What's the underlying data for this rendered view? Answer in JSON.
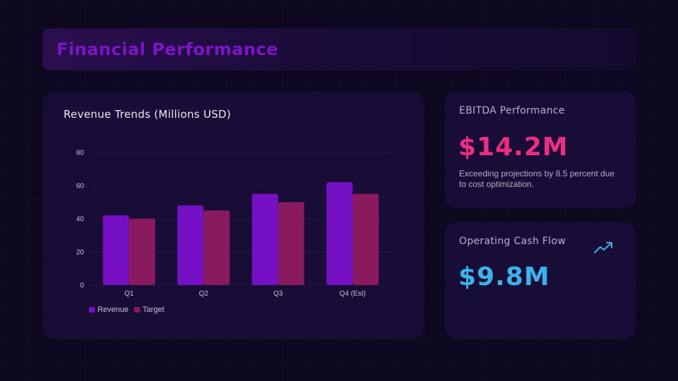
{
  "page": {
    "title": "Financial Performance"
  },
  "chart_data": {
    "type": "bar",
    "title": "Revenue Trends (Millions USD)",
    "categories": [
      "Q1",
      "Q2",
      "Q3",
      "Q4 (Est)"
    ],
    "series": [
      {
        "name": "Revenue",
        "values": [
          42,
          48,
          55,
          62
        ],
        "color": "#7510c4"
      },
      {
        "name": "Target",
        "values": [
          40,
          45,
          50,
          55
        ],
        "color": "#8a1a5e"
      }
    ],
    "xlabel": "",
    "ylabel": "",
    "ylim": [
      0,
      80
    ],
    "yticks": [
      0,
      20,
      40,
      60,
      80
    ],
    "grid": true,
    "legend": "bottom-left"
  },
  "kpis": {
    "ebitda": {
      "label": "EBITDA Performance",
      "value": "$14.2M",
      "description": "Exceeding projections by 8.5 percent due to cost optimization.",
      "color": "#f02b83"
    },
    "cash_flow": {
      "label": "Operating Cash Flow",
      "value": "$9.8M",
      "icon": "trending-up-icon",
      "color": "#3ab2ea"
    }
  }
}
